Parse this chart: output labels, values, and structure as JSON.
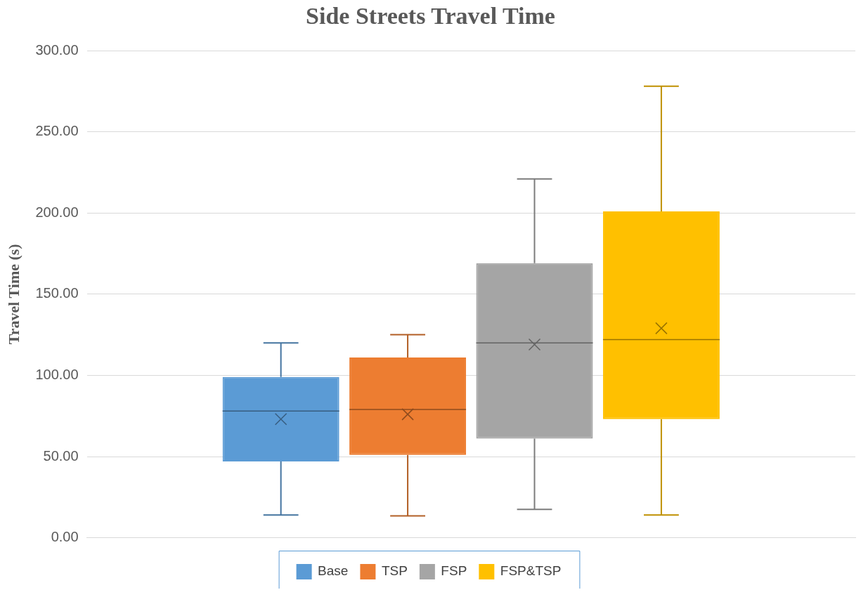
{
  "chart_data": {
    "type": "box",
    "title": "Side Streets Travel Time",
    "ylabel": "Travel Time (s)",
    "categories": [
      null
    ],
    "series": [
      {
        "name": "Base",
        "color": "#5b9bd5",
        "boxes": [
          {
            "low": 14,
            "q1": 47,
            "median": 78,
            "q3": 99,
            "high": 120,
            "mean": 73
          }
        ]
      },
      {
        "name": "TSP",
        "color": "#ed7d31",
        "boxes": [
          {
            "low": 13.5,
            "q1": 51,
            "median": 79,
            "q3": 111,
            "high": 125,
            "mean": 76
          }
        ]
      },
      {
        "name": "FSP",
        "color": "#a5a5a5",
        "boxes": [
          {
            "low": 17.5,
            "q1": 61,
            "median": 120,
            "q3": 169,
            "high": 221,
            "mean": 119
          }
        ]
      },
      {
        "name": "FSP&TSP",
        "color": "#ffc000",
        "boxes": [
          {
            "low": 14,
            "q1": 73,
            "median": 122,
            "q3": 201,
            "high": 278,
            "mean": 129
          }
        ]
      }
    ],
    "ylim": [
      0,
      300
    ],
    "yticks": [
      {
        "value": 0,
        "label": "0.00"
      },
      {
        "value": 50,
        "label": "50.00"
      },
      {
        "value": 100,
        "label": "100.00"
      },
      {
        "value": 150,
        "label": "150.00"
      },
      {
        "value": 200,
        "label": "200.00"
      },
      {
        "value": 250,
        "label": "250.00"
      },
      {
        "value": 300,
        "label": "300.00"
      }
    ],
    "grid": "y",
    "legend": "bottom"
  }
}
